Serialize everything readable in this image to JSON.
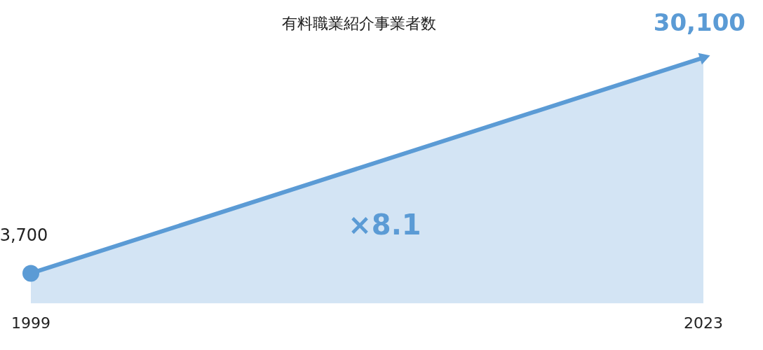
{
  "chart_data": {
    "type": "area",
    "title": "有料職業紹介事業者数",
    "categories": [
      "1999",
      "2023"
    ],
    "series": [
      {
        "color": "#5b9bd5",
        "values": [
          3700,
          30100
        ],
        "value_labels": [
          "3,700",
          "30,100"
        ]
      }
    ],
    "tick_labels": "x",
    "grid": false,
    "legend": false,
    "marker": "circle",
    "annotations": [
      "×8.1"
    ]
  }
}
